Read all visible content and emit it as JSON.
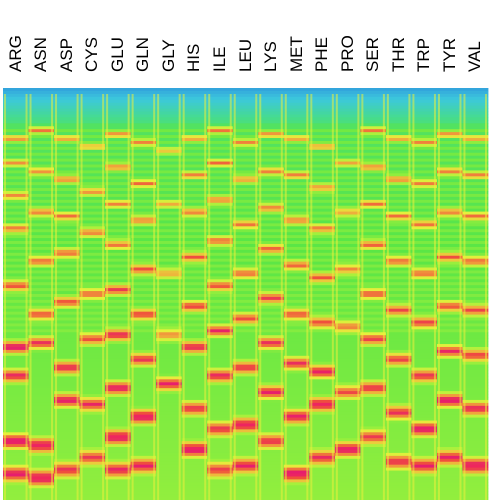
{
  "chart_data": {
    "type": "heatmap",
    "columns": [
      "ARG",
      "ASN",
      "ASP",
      "CYS",
      "GLU",
      "GLN",
      "GLY",
      "HIS",
      "ILE",
      "LEU",
      "LYS",
      "MET",
      "PHE",
      "PRO",
      "SER",
      "THR",
      "TRP",
      "TYR",
      "VAL"
    ],
    "colormap": [
      "#1e3cb4",
      "#2a82dc",
      "#3cc8dc",
      "#46dc8c",
      "#5ae646",
      "#a0f03c",
      "#e6f03c",
      "#f0a03c",
      "#f0503c",
      "#e61e6e",
      "#f0285a"
    ],
    "grid": false,
    "legend": "none",
    "band_intensity_profiles": [
      {
        "name": "ARG",
        "peaks": [
          0.12,
          0.18,
          0.26,
          0.34,
          0.48,
          0.63,
          0.7,
          0.86,
          0.94
        ],
        "peak_strength": [
          0.6,
          0.5,
          0.55,
          0.6,
          0.7,
          0.95,
          0.85,
          1.0,
          0.9
        ]
      },
      {
        "name": "ASN",
        "peaks": [
          0.1,
          0.2,
          0.3,
          0.42,
          0.55,
          0.62,
          0.87,
          0.95
        ],
        "peak_strength": [
          0.6,
          0.55,
          0.6,
          0.65,
          0.7,
          0.8,
          0.95,
          1.0
        ]
      },
      {
        "name": "ASP",
        "peaks": [
          0.12,
          0.22,
          0.31,
          0.4,
          0.52,
          0.68,
          0.76,
          0.93
        ],
        "peak_strength": [
          0.55,
          0.6,
          0.6,
          0.65,
          0.7,
          0.85,
          0.9,
          0.8
        ]
      },
      {
        "name": "CYS",
        "peaks": [
          0.14,
          0.25,
          0.35,
          0.5,
          0.61,
          0.77,
          0.9
        ],
        "peak_strength": [
          0.5,
          0.55,
          0.6,
          0.65,
          0.7,
          0.8,
          0.75
        ]
      },
      {
        "name": "GLU",
        "peaks": [
          0.11,
          0.19,
          0.28,
          0.38,
          0.49,
          0.6,
          0.73,
          0.85,
          0.93
        ],
        "peak_strength": [
          0.6,
          0.6,
          0.55,
          0.6,
          0.75,
          0.85,
          0.9,
          1.0,
          0.85
        ]
      },
      {
        "name": "GLN",
        "peaks": [
          0.13,
          0.23,
          0.32,
          0.44,
          0.55,
          0.66,
          0.8,
          0.92
        ],
        "peak_strength": [
          0.55,
          0.6,
          0.6,
          0.7,
          0.75,
          0.8,
          1.0,
          0.85
        ]
      },
      {
        "name": "GLY",
        "peaks": [
          0.15,
          0.28,
          0.45,
          0.6,
          0.72
        ],
        "peak_strength": [
          0.4,
          0.45,
          0.5,
          0.55,
          0.85
        ]
      },
      {
        "name": "HIS",
        "peaks": [
          0.12,
          0.21,
          0.3,
          0.41,
          0.53,
          0.63,
          0.78,
          0.88
        ],
        "peak_strength": [
          0.55,
          0.6,
          0.6,
          0.65,
          0.75,
          0.85,
          0.8,
          1.0
        ]
      },
      {
        "name": "ILE",
        "peaks": [
          0.1,
          0.18,
          0.27,
          0.37,
          0.48,
          0.59,
          0.7,
          0.83,
          0.93
        ],
        "peak_strength": [
          0.6,
          0.6,
          0.6,
          0.65,
          0.7,
          0.8,
          0.85,
          0.8,
          0.75
        ]
      },
      {
        "name": "LEU",
        "peaks": [
          0.13,
          0.22,
          0.33,
          0.45,
          0.56,
          0.68,
          0.82,
          0.92
        ],
        "peak_strength": [
          0.55,
          0.55,
          0.6,
          0.65,
          0.7,
          0.8,
          0.95,
          0.85
        ]
      },
      {
        "name": "LYS",
        "peaks": [
          0.11,
          0.2,
          0.29,
          0.39,
          0.51,
          0.62,
          0.74,
          0.86
        ],
        "peak_strength": [
          0.6,
          0.6,
          0.6,
          0.65,
          0.75,
          0.8,
          0.85,
          0.8
        ]
      },
      {
        "name": "MET",
        "peaks": [
          0.12,
          0.21,
          0.32,
          0.43,
          0.55,
          0.67,
          0.8,
          0.94
        ],
        "peak_strength": [
          0.55,
          0.6,
          0.6,
          0.65,
          0.7,
          0.8,
          0.9,
          1.0
        ]
      },
      {
        "name": "PHE",
        "peaks": [
          0.14,
          0.24,
          0.34,
          0.46,
          0.57,
          0.69,
          0.77,
          0.9
        ],
        "peak_strength": [
          0.55,
          0.55,
          0.6,
          0.65,
          0.7,
          0.9,
          0.95,
          0.8
        ]
      },
      {
        "name": "PRO",
        "peaks": [
          0.18,
          0.3,
          0.44,
          0.58,
          0.74,
          0.88
        ],
        "peak_strength": [
          0.45,
          0.5,
          0.55,
          0.6,
          0.7,
          0.95
        ]
      },
      {
        "name": "SER",
        "peaks": [
          0.1,
          0.19,
          0.28,
          0.38,
          0.5,
          0.61,
          0.73,
          0.85
        ],
        "peak_strength": [
          0.6,
          0.6,
          0.6,
          0.65,
          0.7,
          0.75,
          0.8,
          0.75
        ]
      },
      {
        "name": "THR",
        "peaks": [
          0.12,
          0.22,
          0.31,
          0.42,
          0.54,
          0.66,
          0.79,
          0.91
        ],
        "peak_strength": [
          0.55,
          0.6,
          0.6,
          0.65,
          0.7,
          0.75,
          0.8,
          0.8
        ]
      },
      {
        "name": "TRP",
        "peaks": [
          0.13,
          0.23,
          0.33,
          0.45,
          0.57,
          0.7,
          0.83,
          0.92
        ],
        "peak_strength": [
          0.55,
          0.55,
          0.6,
          0.65,
          0.75,
          0.8,
          0.95,
          0.85
        ]
      },
      {
        "name": "TYR",
        "peaks": [
          0.11,
          0.2,
          0.3,
          0.41,
          0.53,
          0.64,
          0.76,
          0.9
        ],
        "peak_strength": [
          0.6,
          0.6,
          0.6,
          0.65,
          0.7,
          0.8,
          0.95,
          0.85
        ]
      },
      {
        "name": "VAL",
        "peaks": [
          0.12,
          0.21,
          0.31,
          0.42,
          0.54,
          0.65,
          0.78,
          0.92
        ],
        "peak_strength": [
          0.55,
          0.6,
          0.6,
          0.65,
          0.7,
          0.75,
          0.85,
          1.0
        ]
      }
    ]
  }
}
